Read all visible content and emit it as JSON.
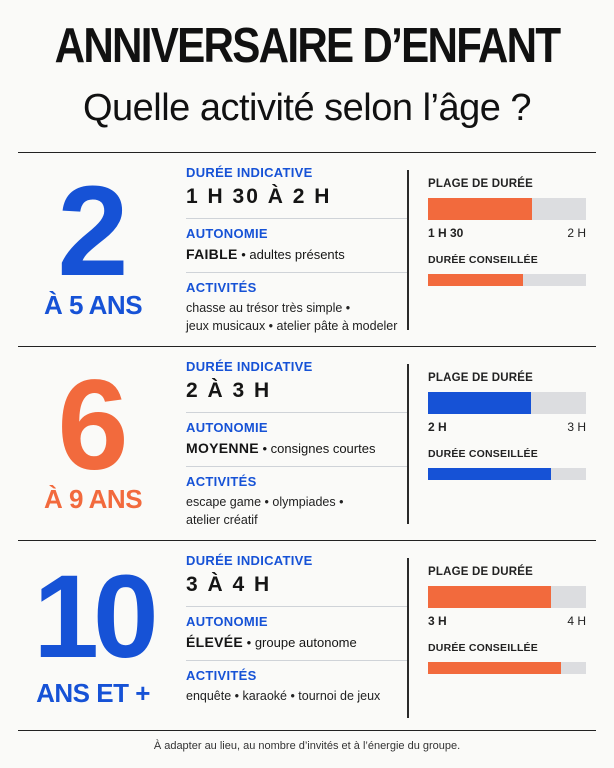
{
  "header": {
    "title": "ANNIVERSAIRE D’ENFANT",
    "subtitle": "Quelle activité selon l’âge ?"
  },
  "labels": {
    "duree": "DURÉE INDICATIVE",
    "autonomie": "AUTONOMIE",
    "activites": "ACTIVITÉS",
    "plage": "PLAGE DE DURÉE",
    "conseillee": "DURÉE CONSEILLÉE"
  },
  "colors": {
    "blue": "#1652d6",
    "orange": "#f26a3d",
    "track": "#dcdde0"
  },
  "sections": [
    {
      "age_number": "2",
      "age_range": "À 5 ANS",
      "age_color": "#1652d6",
      "duration": "1 H 30 À 2 H",
      "autonomy_level": "FAIBLE",
      "autonomy_note": " • adultes présents",
      "activities_line1": "chasse au trésor très simple •",
      "activities_line2": "jeux musicaux • atelier pâte à modeler",
      "range_min": "1 H 30",
      "range_max": "2 H",
      "bar_color": "#f26a3d",
      "range_fill_fraction": 0.66,
      "recommended_fill_fraction": 0.6
    },
    {
      "age_number": "6",
      "age_range": "À 9 ANS",
      "age_color": "#f26a3d",
      "duration": "2 À 3 H",
      "autonomy_level": "MOYENNE",
      "autonomy_note": " • consignes courtes",
      "activities_line1": "escape game • olympiades •",
      "activities_line2": "atelier créatif",
      "range_min": "2 H",
      "range_max": "3 H",
      "bar_color": "#1652d6",
      "range_fill_fraction": 0.65,
      "recommended_fill_fraction": 0.78
    },
    {
      "age_number": "10",
      "age_range": "ANS ET +",
      "age_color": "#1652d6",
      "duration": "3 À 4 H",
      "autonomy_level": "ÉLEVÉE",
      "autonomy_note": " • groupe autonome",
      "activities_line1": "enquête • karaoké • tournoi de jeux",
      "activities_line2": "",
      "range_min": "3 H",
      "range_max": "4 H",
      "bar_color": "#f26a3d",
      "range_fill_fraction": 0.78,
      "recommended_fill_fraction": 0.84
    }
  ],
  "footer": "À adapter au lieu, au nombre d’invités et à l’énergie du groupe."
}
